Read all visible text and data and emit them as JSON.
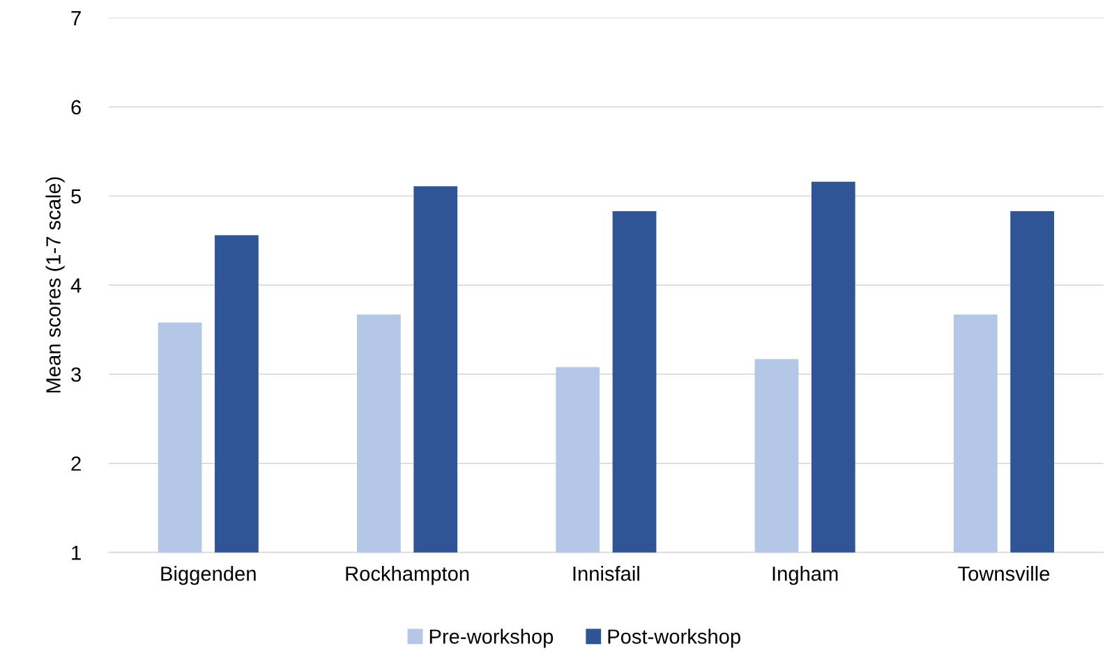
{
  "chart_data": {
    "type": "bar",
    "ylabel": "Mean scores (1-7 scale)",
    "categories": [
      "Biggenden",
      "Rockhampton",
      "Innisfail",
      "Ingham",
      "Townsville"
    ],
    "series": [
      {
        "name": "Pre-workshop",
        "color": "#b4c7e7",
        "values": [
          3.58,
          3.67,
          3.08,
          3.17,
          3.67
        ]
      },
      {
        "name": "Post-workshop",
        "color": "#2f5597",
        "values": [
          4.56,
          5.11,
          4.83,
          5.16,
          4.83
        ]
      }
    ],
    "ylim": [
      1,
      7
    ],
    "yticks": [
      1,
      2,
      3,
      4,
      5,
      6,
      7
    ],
    "grid": "y",
    "legend": "bottom"
  }
}
